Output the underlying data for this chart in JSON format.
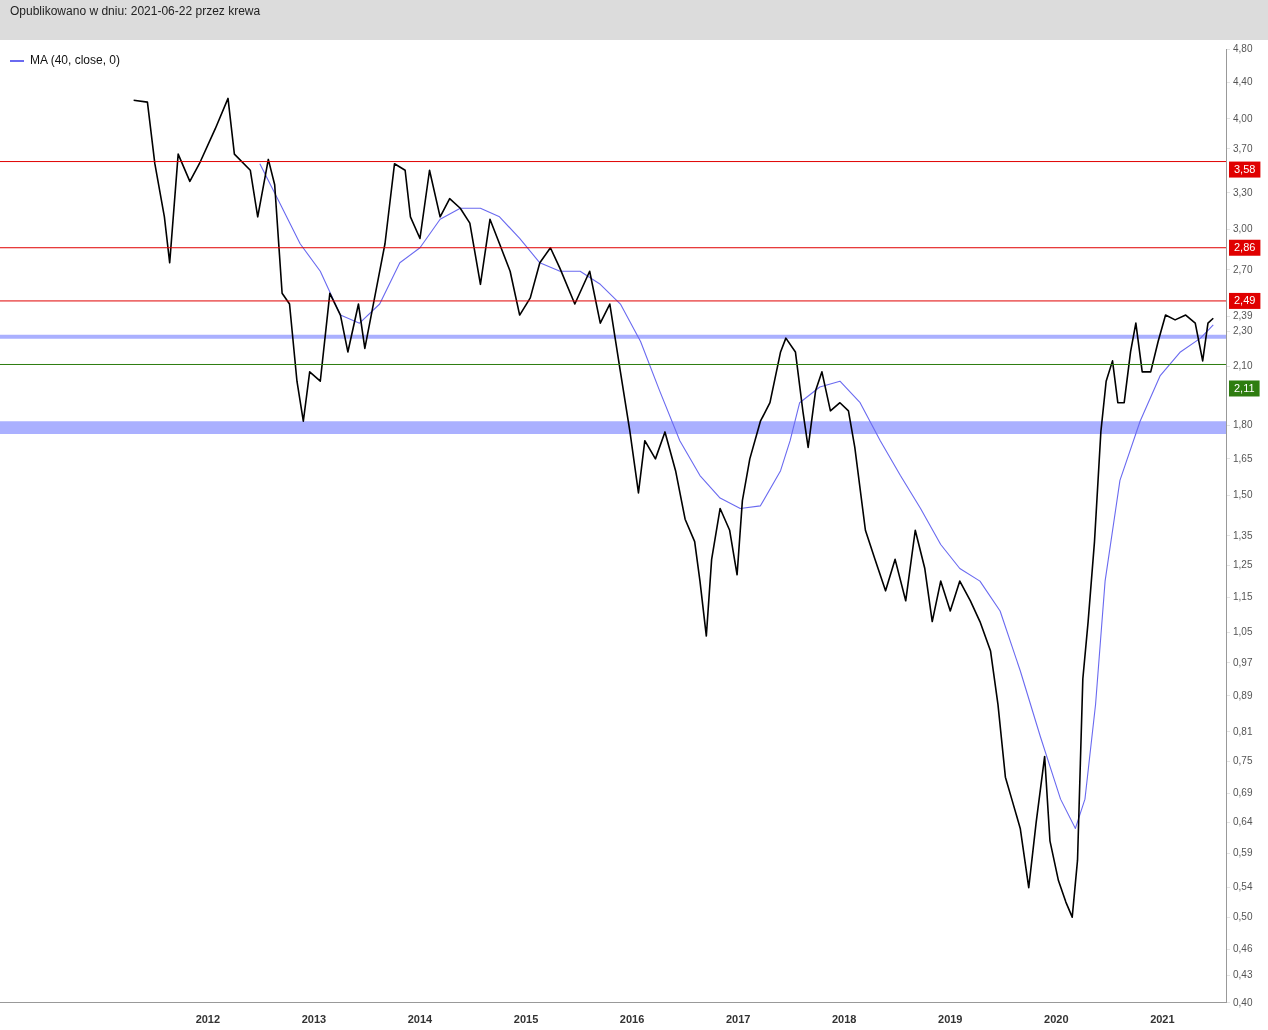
{
  "chart_data": {
    "type": "line",
    "title": "Opublikowano w dniu: 2021-06-22 przez krewa",
    "log": "y",
    "grid": false,
    "legend": "top left",
    "xlim": [
      2010.04,
      2021.6
    ],
    "xticks": [
      2012,
      2013,
      2014,
      2015,
      2016,
      2017,
      2018,
      2019,
      2020,
      2021
    ],
    "ylim": [
      0.4,
      4.8
    ],
    "yticks": [
      {
        "value": 0.4,
        "label": "0,40"
      },
      {
        "value": 0.43,
        "label": "0,43"
      },
      {
        "value": 0.46,
        "label": "0,46"
      },
      {
        "value": 0.5,
        "label": "0,50"
      },
      {
        "value": 0.54,
        "label": "0,54"
      },
      {
        "value": 0.59,
        "label": "0,59"
      },
      {
        "value": 0.64,
        "label": "0,64"
      },
      {
        "value": 0.69,
        "label": "0,69"
      },
      {
        "value": 0.75,
        "label": "0,75"
      },
      {
        "value": 0.81,
        "label": "0,81"
      },
      {
        "value": 0.89,
        "label": "0,89"
      },
      {
        "value": 0.97,
        "label": "0,97"
      },
      {
        "value": 1.05,
        "label": "1,05"
      },
      {
        "value": 1.15,
        "label": "1,15"
      },
      {
        "value": 1.25,
        "label": "1,25"
      },
      {
        "value": 1.35,
        "label": "1,35"
      },
      {
        "value": 1.5,
        "label": "1,50"
      },
      {
        "value": 1.65,
        "label": "1,65"
      },
      {
        "value": 1.8,
        "label": "1,80"
      },
      {
        "value": 2.1,
        "label": "2,10"
      },
      {
        "value": 2.3,
        "label": "2,30"
      },
      {
        "value": 2.39,
        "label": "2,39"
      },
      {
        "value": 2.7,
        "label": "2,70"
      },
      {
        "value": 3.0,
        "label": "3,00"
      },
      {
        "value": 3.3,
        "label": "3,30"
      },
      {
        "value": 3.7,
        "label": "3,70"
      },
      {
        "value": 4.0,
        "label": "4,00"
      },
      {
        "value": 4.4,
        "label": "4,40"
      },
      {
        "value": 4.8,
        "label": "4,80"
      }
    ],
    "series": [
      {
        "color": "#000000",
        "x": [
          2011.3,
          2011.43,
          2011.5,
          2011.59,
          2011.64,
          2011.72,
          2011.83,
          2011.92,
          2012.07,
          2012.19,
          2012.25,
          2012.4,
          2012.47,
          2012.57,
          2012.63,
          2012.7,
          2012.77,
          2012.84,
          2012.9,
          2012.96,
          2013.06,
          2013.15,
          2013.25,
          2013.32,
          2013.42,
          2013.48,
          2013.58,
          2013.67,
          2013.76,
          2013.86,
          2013.91,
          2014.0,
          2014.09,
          2014.19,
          2014.28,
          2014.38,
          2014.47,
          2014.57,
          2014.66,
          2014.75,
          2014.85,
          2014.94,
          2015.04,
          2015.13,
          2015.23,
          2015.32,
          2015.46,
          2015.6,
          2015.7,
          2015.79,
          2015.89,
          2015.98,
          2016.06,
          2016.12,
          2016.22,
          2016.31,
          2016.41,
          2016.5,
          2016.59,
          2016.64,
          2016.7,
          2016.75,
          2016.83,
          2016.92,
          2016.99,
          2017.04,
          2017.11,
          2017.21,
          2017.3,
          2017.4,
          2017.45,
          2017.54,
          2017.61,
          2017.66,
          2017.73,
          2017.79,
          2017.87,
          2017.96,
          2018.04,
          2018.1,
          2018.2,
          2018.29,
          2018.39,
          2018.48,
          2018.58,
          2018.67,
          2018.76,
          2018.83,
          2018.91,
          2019.0,
          2019.09,
          2019.19,
          2019.28,
          2019.38,
          2019.45,
          2019.52,
          2019.58,
          2019.66,
          2019.74,
          2019.81,
          2019.89,
          2019.94,
          2020.02,
          2020.09,
          2020.15,
          2020.2,
          2020.25,
          2020.3,
          2020.36,
          2020.42,
          2020.47,
          2020.53,
          2020.58,
          2020.64,
          2020.7,
          2020.75,
          2020.81,
          2020.89,
          2020.96,
          2021.03,
          2021.12,
          2021.22,
          2021.31,
          2021.38,
          2021.43,
          2021.48
        ],
        "values": [
          4.2,
          4.18,
          3.56,
          3.1,
          2.75,
          3.65,
          3.4,
          3.56,
          3.9,
          4.22,
          3.65,
          3.5,
          3.1,
          3.6,
          3.37,
          2.54,
          2.47,
          2.02,
          1.82,
          2.07,
          2.02,
          2.54,
          2.4,
          2.18,
          2.47,
          2.2,
          2.54,
          2.89,
          3.56,
          3.5,
          3.1,
          2.93,
          3.5,
          3.1,
          3.25,
          3.17,
          3.05,
          2.6,
          3.08,
          2.89,
          2.69,
          2.4,
          2.51,
          2.75,
          2.86,
          2.71,
          2.47,
          2.69,
          2.35,
          2.47,
          2.07,
          1.77,
          1.51,
          1.73,
          1.65,
          1.77,
          1.6,
          1.41,
          1.33,
          1.2,
          1.04,
          1.27,
          1.45,
          1.37,
          1.22,
          1.48,
          1.65,
          1.82,
          1.91,
          2.18,
          2.26,
          2.18,
          1.87,
          1.7,
          1.97,
          2.07,
          1.87,
          1.91,
          1.87,
          1.7,
          1.37,
          1.27,
          1.17,
          1.27,
          1.14,
          1.37,
          1.24,
          1.08,
          1.2,
          1.11,
          1.2,
          1.14,
          1.08,
          1.0,
          0.87,
          0.72,
          0.68,
          0.63,
          0.54,
          0.64,
          0.76,
          0.61,
          0.55,
          0.52,
          0.5,
          0.58,
          0.93,
          1.08,
          1.33,
          1.77,
          2.02,
          2.13,
          1.91,
          1.91,
          2.18,
          2.35,
          2.07,
          2.07,
          2.24,
          2.4,
          2.37,
          2.4,
          2.35,
          2.13,
          2.35,
          2.38
        ]
      },
      {
        "name": "MA (40, close, 0)",
        "color": "#6a6af0",
        "x": [
          2012.49,
          2012.68,
          2012.87,
          2013.06,
          2013.25,
          2013.43,
          2013.62,
          2013.81,
          2014.0,
          2014.19,
          2014.38,
          2014.57,
          2014.75,
          2014.94,
          2015.13,
          2015.32,
          2015.51,
          2015.7,
          2015.89,
          2016.08,
          2016.26,
          2016.45,
          2016.64,
          2016.83,
          2017.02,
          2017.21,
          2017.4,
          2017.49,
          2017.58,
          2017.77,
          2017.96,
          2018.15,
          2018.34,
          2018.53,
          2018.72,
          2018.91,
          2019.09,
          2019.28,
          2019.47,
          2019.66,
          2019.85,
          2020.04,
          2020.18,
          2020.27,
          2020.37,
          2020.46,
          2020.6,
          2020.79,
          2020.98,
          2021.17,
          2021.36,
          2021.48
        ],
        "values": [
          3.56,
          3.21,
          2.89,
          2.69,
          2.4,
          2.35,
          2.47,
          2.75,
          2.86,
          3.08,
          3.17,
          3.17,
          3.1,
          2.93,
          2.75,
          2.69,
          2.69,
          2.6,
          2.47,
          2.24,
          1.97,
          1.73,
          1.58,
          1.49,
          1.45,
          1.46,
          1.6,
          1.73,
          1.91,
          1.99,
          2.02,
          1.91,
          1.73,
          1.58,
          1.45,
          1.32,
          1.24,
          1.2,
          1.11,
          0.95,
          0.8,
          0.68,
          0.63,
          0.68,
          0.87,
          1.2,
          1.56,
          1.82,
          2.05,
          2.18,
          2.26,
          2.34
        ]
      }
    ],
    "ref_lines": [
      {
        "axis": "y",
        "value": 3.58,
        "label": "3,58",
        "color": "#e00000"
      },
      {
        "axis": "y",
        "value": 2.86,
        "label": "2,86",
        "color": "#e00000"
      },
      {
        "axis": "y",
        "value": 2.49,
        "label": "2,49",
        "color": "#e00000"
      },
      {
        "axis": "y",
        "value": 2.11,
        "label": "2,11",
        "color": "#2e7d10"
      }
    ],
    "bands": [
      {
        "axis": "y",
        "from": 2.26,
        "to": 2.28,
        "color": "#aab0ff"
      },
      {
        "axis": "y",
        "from": 1.76,
        "to": 1.82,
        "color": "#aab0ff"
      }
    ]
  }
}
